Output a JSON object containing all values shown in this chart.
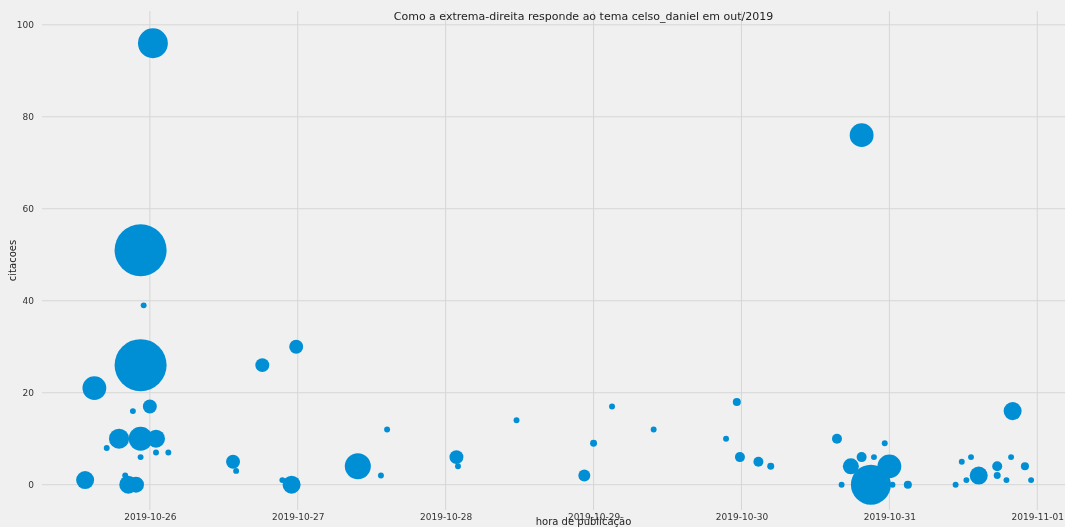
{
  "chart_data": {
    "type": "bubble",
    "title": "Como a extrema-direita responde ao tema celso_daniel em out/2019",
    "xlabel": "hora de publicação",
    "ylabel": "citacoes",
    "grid": true,
    "marker": "circle",
    "xlim": [
      "2019-10-25T06:30",
      "2019-11-01T04:30"
    ],
    "xticks": [
      "2019-10-26",
      "2019-10-27",
      "2019-10-28",
      "2019-10-29",
      "2019-10-30",
      "2019-10-31",
      "2019-11-01"
    ],
    "ylim": [
      -5.5,
      103
    ],
    "yticks": [
      0,
      20,
      40,
      60,
      80,
      100
    ],
    "series": [
      {
        "color": "#008fd5",
        "x": [
          "2019-10-25T13:30",
          "2019-10-26T00:30",
          "2019-10-25T22:30",
          "2019-10-25T22:30",
          "2019-10-25T15:00",
          "2019-10-26T00:00",
          "2019-10-25T19:00",
          "2019-10-25T22:30",
          "2019-10-26T01:00",
          "2019-10-25T20:30",
          "2019-10-25T21:45",
          "2019-10-25T20:00",
          "2019-10-25T22:30",
          "2019-10-25T23:00",
          "2019-10-25T21:15",
          "2019-10-26T01:00",
          "2019-10-26T03:00",
          "2019-10-25T17:00",
          "2019-10-26T13:30",
          "2019-10-26T14:00",
          "2019-10-26T18:15",
          "2019-10-26T23:45",
          "2019-10-26T23:00",
          "2019-10-26T21:30",
          "2019-10-27T09:45",
          "2019-10-27T13:30",
          "2019-10-27T14:30",
          "2019-10-28T01:45",
          "2019-10-28T02:00",
          "2019-10-28T11:30",
          "2019-10-28T22:30",
          "2019-10-29T00:00",
          "2019-10-29T03:00",
          "2019-10-29T09:45",
          "2019-10-29T21:30",
          "2019-10-29T23:15",
          "2019-10-29T23:45",
          "2019-10-30T02:45",
          "2019-10-30T04:45",
          "2019-10-30T15:30",
          "2019-10-30T16:15",
          "2019-10-30T17:45",
          "2019-10-30T19:30",
          "2019-10-30T19:30",
          "2019-10-30T21:00",
          "2019-10-31T00:00",
          "2019-10-30T21:30",
          "2019-10-30T23:15",
          "2019-10-31T00:30",
          "2019-10-31T03:00",
          "2019-10-31T10:45",
          "2019-10-31T11:45",
          "2019-10-31T13:15",
          "2019-10-31T12:30",
          "2019-10-31T14:30",
          "2019-10-31T17:30",
          "2019-10-31T17:30",
          "2019-10-31T19:00",
          "2019-10-31T20:00",
          "2019-10-31T19:45",
          "2019-10-31T22:00",
          "2019-10-31T23:00"
        ],
        "values": [
          1,
          96,
          51,
          26,
          21,
          17,
          10,
          10,
          10,
          0,
          0,
          2,
          6,
          39,
          16,
          7,
          7,
          8,
          5,
          3,
          26,
          30,
          0,
          1,
          4,
          2,
          12,
          6,
          4,
          14,
          2,
          9,
          17,
          12,
          10,
          18,
          6,
          5,
          4,
          10,
          0,
          4,
          6,
          76,
          0,
          4,
          6,
          9,
          0,
          0,
          0,
          5,
          6,
          1,
          2,
          4,
          2,
          1,
          16,
          6,
          4,
          1
        ],
        "sizes": [
          0.12,
          0.33,
          1,
          1,
          0.21,
          0.072,
          0.15,
          0.21,
          0.12,
          0.12,
          0.095,
          0.013,
          0.013,
          0.013,
          0.013,
          0.013,
          0.013,
          0.013,
          0.072,
          0.013,
          0.072,
          0.072,
          0.12,
          0.013,
          0.25,
          0.013,
          0.013,
          0.072,
          0.013,
          0.013,
          0.053,
          0.018,
          0.013,
          0.013,
          0.013,
          0.024,
          0.037,
          0.037,
          0.018,
          0.037,
          0.013,
          0.095,
          0.037,
          0.21,
          0.59,
          0.21,
          0.013,
          0.013,
          0.013,
          0.024,
          0.013,
          0.013,
          0.013,
          0.013,
          0.12,
          0.037,
          0.018,
          0.013,
          0.12,
          0.013,
          0.024,
          0.013
        ]
      }
    ]
  }
}
